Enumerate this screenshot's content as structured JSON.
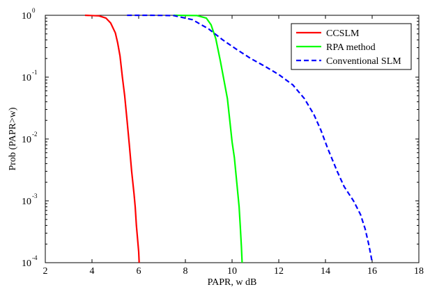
{
  "chart_data": {
    "type": "line",
    "xlabel": "PAPR, w dB",
    "ylabel": "Prob (PAPR>w)",
    "xlim": [
      2,
      18
    ],
    "ylim": [
      0.0001,
      1
    ],
    "yscale": "log",
    "xticks": [
      "2",
      "4",
      "6",
      "8",
      "10",
      "12",
      "14",
      "16",
      "18"
    ],
    "yticks": [
      {
        "base": "10",
        "exp": "0"
      },
      {
        "base": "10",
        "exp": "-1"
      },
      {
        "base": "10",
        "exp": "-2"
      },
      {
        "base": "10",
        "exp": "-3"
      },
      {
        "base": "10",
        "exp": "-4"
      }
    ],
    "grid": false,
    "legend_position": "top-right",
    "series": [
      {
        "name": "CCSLM",
        "color": "#ff0000",
        "style": "solid",
        "x": [
          3.7,
          4.3,
          4.6,
          4.8,
          5.0,
          5.1,
          5.2,
          5.3,
          5.4,
          5.5,
          5.6,
          5.7,
          5.8,
          5.85,
          5.9,
          6.0,
          6.02
        ],
        "y": [
          1.0,
          0.98,
          0.9,
          0.75,
          0.52,
          0.36,
          0.22,
          0.1,
          0.05,
          0.02,
          0.008,
          0.003,
          0.0013,
          0.0008,
          0.0004,
          0.00015,
          0.0001
        ]
      },
      {
        "name": "RPA method",
        "color": "#00ff00",
        "style": "solid",
        "x": [
          7.5,
          8.5,
          8.9,
          9.1,
          9.3,
          9.5,
          9.65,
          9.8,
          9.9,
          10.0,
          10.1,
          10.2,
          10.3,
          10.35,
          10.4,
          10.43
        ],
        "y": [
          1.0,
          0.99,
          0.9,
          0.7,
          0.42,
          0.18,
          0.09,
          0.045,
          0.02,
          0.009,
          0.005,
          0.002,
          0.0008,
          0.0004,
          0.00018,
          0.0001
        ]
      },
      {
        "name": "Conventional SLM",
        "color": "#0000ff",
        "style": "dashed",
        "x": [
          5.5,
          6.5,
          7.5,
          8.3,
          9.0,
          9.6,
          10.2,
          10.8,
          11.4,
          12.0,
          12.6,
          13.1,
          13.5,
          13.8,
          14.1,
          14.5,
          14.8,
          15.2,
          15.5,
          15.7,
          15.85,
          15.95,
          16.0
        ],
        "y": [
          1.0,
          1.0,
          0.99,
          0.85,
          0.6,
          0.4,
          0.28,
          0.2,
          0.15,
          0.11,
          0.075,
          0.045,
          0.025,
          0.014,
          0.007,
          0.003,
          0.0017,
          0.001,
          0.0006,
          0.00035,
          0.0002,
          0.00013,
          0.0001
        ]
      }
    ]
  }
}
